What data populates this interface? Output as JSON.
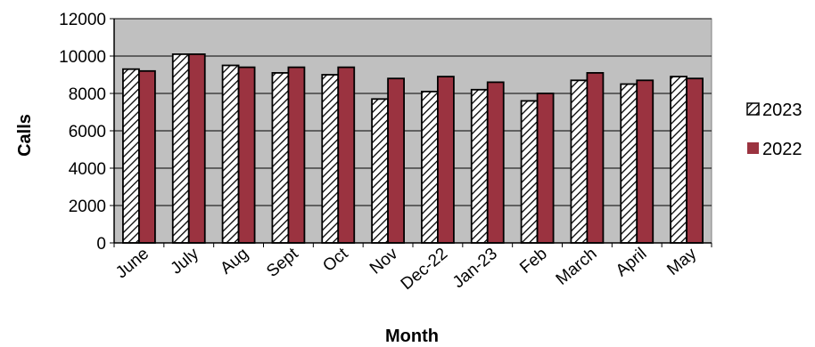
{
  "chart_data": {
    "type": "bar",
    "title": "",
    "xlabel": "Month",
    "ylabel": "Calls",
    "ylim": [
      0,
      12000
    ],
    "yticks": [
      0,
      2000,
      4000,
      6000,
      8000,
      10000,
      12000
    ],
    "grid": true,
    "legend_position": "right",
    "categories": [
      "June",
      "July",
      "Aug",
      "Sept",
      "Oct",
      "Nov",
      "Dec-22",
      "Jan-23",
      "Feb",
      "March",
      "April",
      "May"
    ],
    "series": [
      {
        "name": "2023",
        "style": "hatched",
        "color": "#ffffff",
        "values": [
          9300,
          10100,
          9500,
          9100,
          9000,
          7700,
          8100,
          8200,
          7600,
          8700,
          8500,
          8900
        ]
      },
      {
        "name": "2022",
        "style": "solid",
        "color": "#9b3340",
        "values": [
          9200,
          10100,
          9400,
          9400,
          9400,
          8800,
          8900,
          8600,
          8000,
          9100,
          8700,
          8800
        ]
      }
    ],
    "plot_background": "#c0c0c0"
  }
}
